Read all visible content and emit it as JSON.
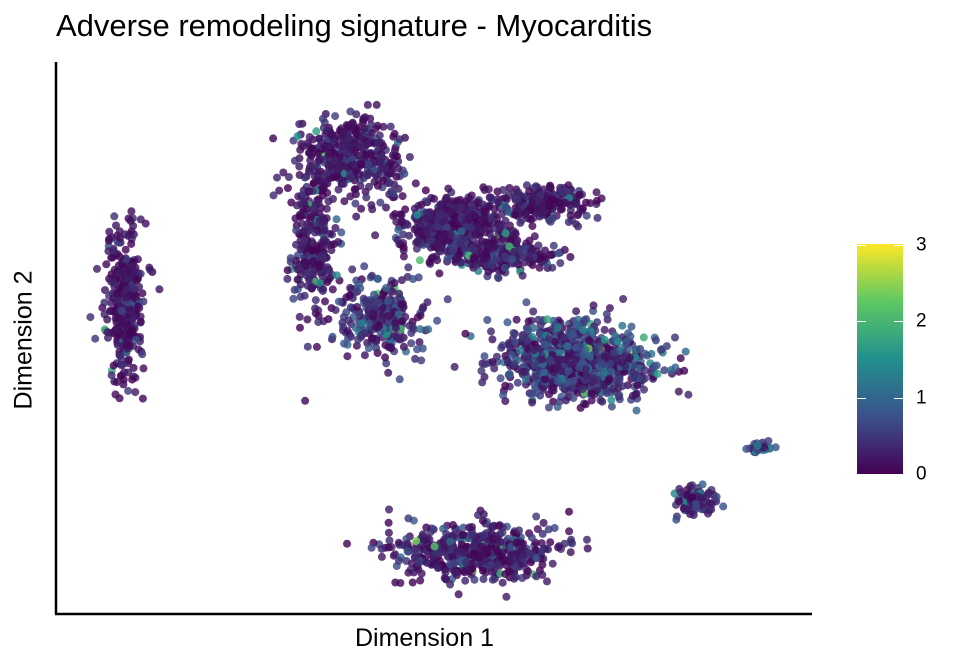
{
  "chart_data": {
    "type": "scatter",
    "title": "Adverse remodeling signature - Myocarditis",
    "xlabel": "Dimension 1",
    "ylabel": "Dimension 2",
    "grid": false,
    "axis_ticks": false,
    "legend": {
      "placement": "right",
      "type": "colorbar",
      "colormap": "viridis",
      "range": [
        0,
        3
      ],
      "ticks": [
        "0",
        "1",
        "2",
        "3"
      ]
    },
    "colormap_stops": [
      "#440154",
      "#3b528b",
      "#21908d",
      "#5dc863",
      "#fde725"
    ],
    "clusters": [
      {
        "x": 0.8,
        "y": 6.2,
        "sx": 0.25,
        "sy": 1.6,
        "n": 380,
        "mean": 0.25
      },
      {
        "x": 4.0,
        "y": 9.3,
        "sx": 0.7,
        "sy": 0.8,
        "n": 420,
        "mean": 0.3
      },
      {
        "x": 3.5,
        "y": 7.5,
        "sx": 0.3,
        "sy": 1.5,
        "n": 260,
        "mean": 0.3
      },
      {
        "x": 5.5,
        "y": 7.8,
        "sx": 0.8,
        "sy": 0.7,
        "n": 520,
        "mean": 0.3
      },
      {
        "x": 6.8,
        "y": 8.3,
        "sx": 0.7,
        "sy": 0.4,
        "n": 220,
        "mean": 0.3
      },
      {
        "x": 6.2,
        "y": 7.2,
        "sx": 0.8,
        "sy": 0.3,
        "n": 200,
        "mean": 0.35
      },
      {
        "x": 4.5,
        "y": 5.9,
        "sx": 0.6,
        "sy": 0.8,
        "n": 260,
        "mean": 0.55
      },
      {
        "x": 7.3,
        "y": 5.0,
        "sx": 1.1,
        "sy": 0.8,
        "n": 900,
        "mean": 0.6
      },
      {
        "x": 5.8,
        "y": 1.0,
        "sx": 1.2,
        "sy": 0.6,
        "n": 520,
        "mean": 0.35
      },
      {
        "x": 9.0,
        "y": 2.1,
        "sx": 0.3,
        "sy": 0.3,
        "n": 90,
        "mean": 0.5
      },
      {
        "x": 9.9,
        "y": 3.2,
        "sx": 0.2,
        "sy": 0.1,
        "n": 30,
        "mean": 0.8
      }
    ],
    "xlim": [
      0,
      10.5
    ],
    "ylim": [
      0,
      11
    ]
  }
}
